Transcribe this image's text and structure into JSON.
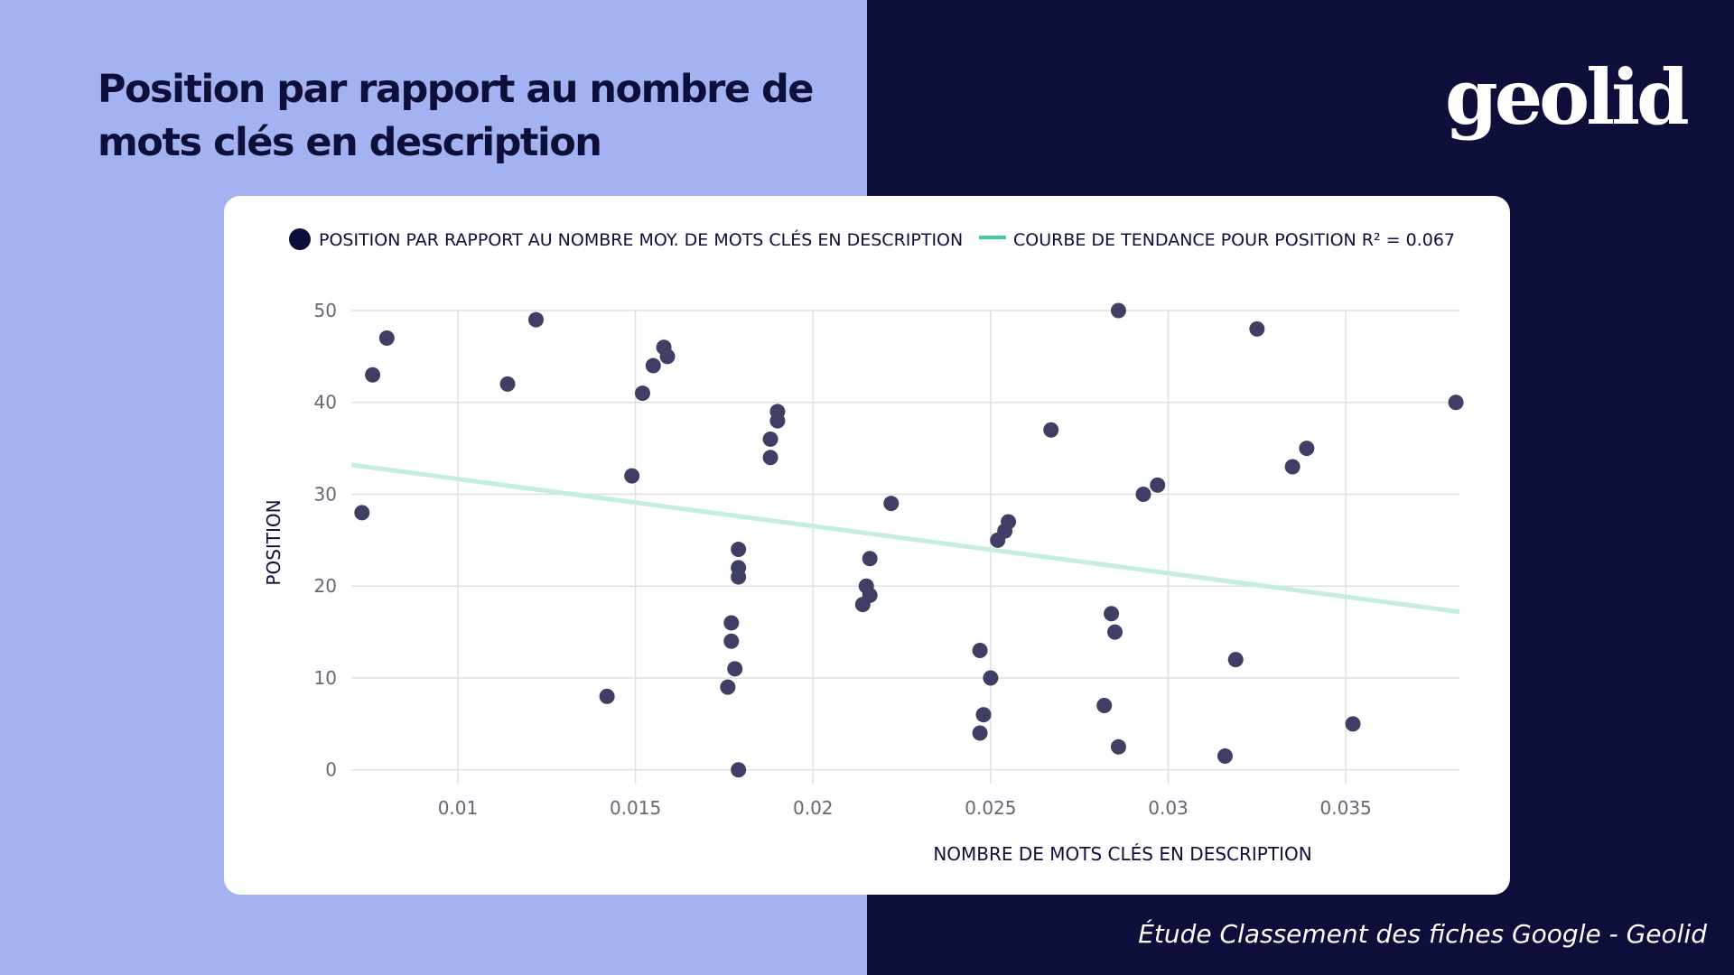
{
  "page": {
    "title": "Position par rapport au nombre de mots clés en description",
    "logo_text": "geolid",
    "footer": "Étude Classement des fiches Google - Geolid",
    "colors": {
      "left_background": "#a3b3f1",
      "right_background": "#0d0e3a",
      "title": "#0d0e3a",
      "card": "#ffffff",
      "points": "#3f3f66",
      "trend": "#c5ede0",
      "legend_trend": "#3ecf9a",
      "grid": "#e0e0e0"
    }
  },
  "chart_data": {
    "type": "scatter",
    "xlabel": "NOMBRE DE MOTS CLÉS EN DESCRIPTION",
    "ylabel": "POSITION",
    "xlim": [
      0.007,
      0.0382
    ],
    "ylim": [
      -1.5,
      50
    ],
    "x_ticks": [
      0.01,
      0.015,
      0.02,
      0.025,
      0.03,
      0.035
    ],
    "x_tick_labels": [
      "0.01",
      "0.015",
      "0.02",
      "0.025",
      "0.03",
      "0.035"
    ],
    "y_ticks": [
      0,
      10,
      20,
      30,
      40,
      50
    ],
    "y_tick_labels": [
      "0",
      "10",
      "20",
      "30",
      "40",
      "50"
    ],
    "grid": true,
    "legend_position": "top",
    "series": [
      {
        "name": "POSITION PAR RAPPORT AU NOMBRE MOY. DE MOTS CLÉS EN DESCRIPTION",
        "type": "scatter",
        "points": [
          [
            0.0073,
            28
          ],
          [
            0.0076,
            43
          ],
          [
            0.008,
            47
          ],
          [
            0.0114,
            42
          ],
          [
            0.0122,
            49
          ],
          [
            0.0142,
            8
          ],
          [
            0.0149,
            32
          ],
          [
            0.0152,
            41
          ],
          [
            0.0155,
            44
          ],
          [
            0.0158,
            46
          ],
          [
            0.0159,
            45
          ],
          [
            0.0176,
            9
          ],
          [
            0.0177,
            16
          ],
          [
            0.0177,
            14
          ],
          [
            0.0178,
            11
          ],
          [
            0.0179,
            0
          ],
          [
            0.0179,
            24
          ],
          [
            0.0179,
            22
          ],
          [
            0.0179,
            21
          ],
          [
            0.0188,
            36
          ],
          [
            0.0188,
            34
          ],
          [
            0.019,
            39
          ],
          [
            0.019,
            38
          ],
          [
            0.0214,
            18
          ],
          [
            0.0215,
            20
          ],
          [
            0.0216,
            23
          ],
          [
            0.0216,
            19
          ],
          [
            0.0222,
            29
          ],
          [
            0.0247,
            13
          ],
          [
            0.0247,
            4
          ],
          [
            0.0248,
            6
          ],
          [
            0.025,
            10
          ],
          [
            0.0252,
            25
          ],
          [
            0.0254,
            26
          ],
          [
            0.0255,
            27
          ],
          [
            0.0267,
            37
          ],
          [
            0.0282,
            7
          ],
          [
            0.0284,
            17
          ],
          [
            0.0285,
            15
          ],
          [
            0.0286,
            50
          ],
          [
            0.0286,
            2.5
          ],
          [
            0.0293,
            30
          ],
          [
            0.0297,
            31
          ],
          [
            0.0316,
            1.5
          ],
          [
            0.0319,
            12
          ],
          [
            0.0325,
            48
          ],
          [
            0.0335,
            33
          ],
          [
            0.0339,
            35
          ],
          [
            0.0352,
            5
          ],
          [
            0.0381,
            40
          ]
        ]
      },
      {
        "name": "COURBE DE TENDANCE POUR POSITION R² = 0.067",
        "type": "line",
        "points": [
          [
            0.007,
            33.2
          ],
          [
            0.0382,
            17.2
          ]
        ]
      }
    ]
  }
}
